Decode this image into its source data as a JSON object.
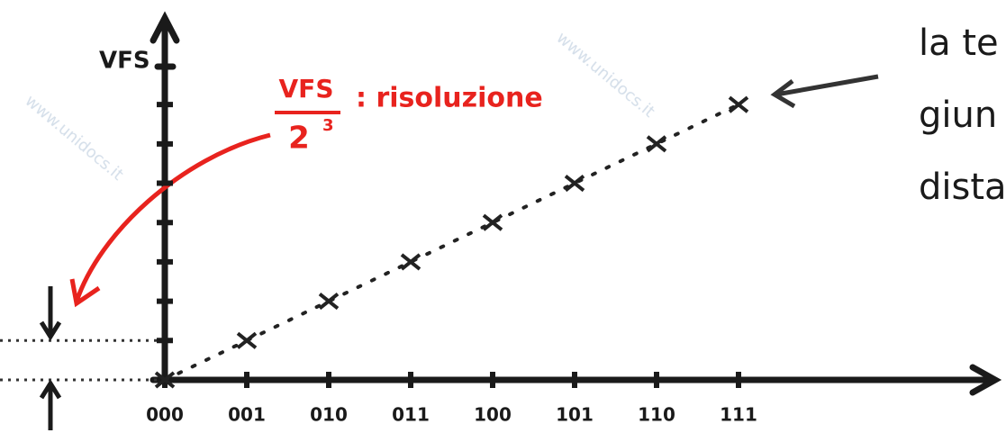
{
  "chart_data": {
    "type": "scatter",
    "y_label": "VFS",
    "categories": [
      "000",
      "001",
      "010",
      "011",
      "100",
      "101",
      "110",
      "111"
    ],
    "values": [
      0,
      1,
      2,
      3,
      4,
      5,
      6,
      7
    ],
    "color": "#222222",
    "ylim": [
      0,
      9.2
    ],
    "annotation": {
      "numerator": "VFS",
      "denominator": "2",
      "exponent": "3",
      "label": ": risoluzione",
      "color": "#e8231e"
    },
    "side_text": [
      "la te",
      "giun",
      "dista"
    ],
    "watermark": "www.unidocs.it"
  }
}
